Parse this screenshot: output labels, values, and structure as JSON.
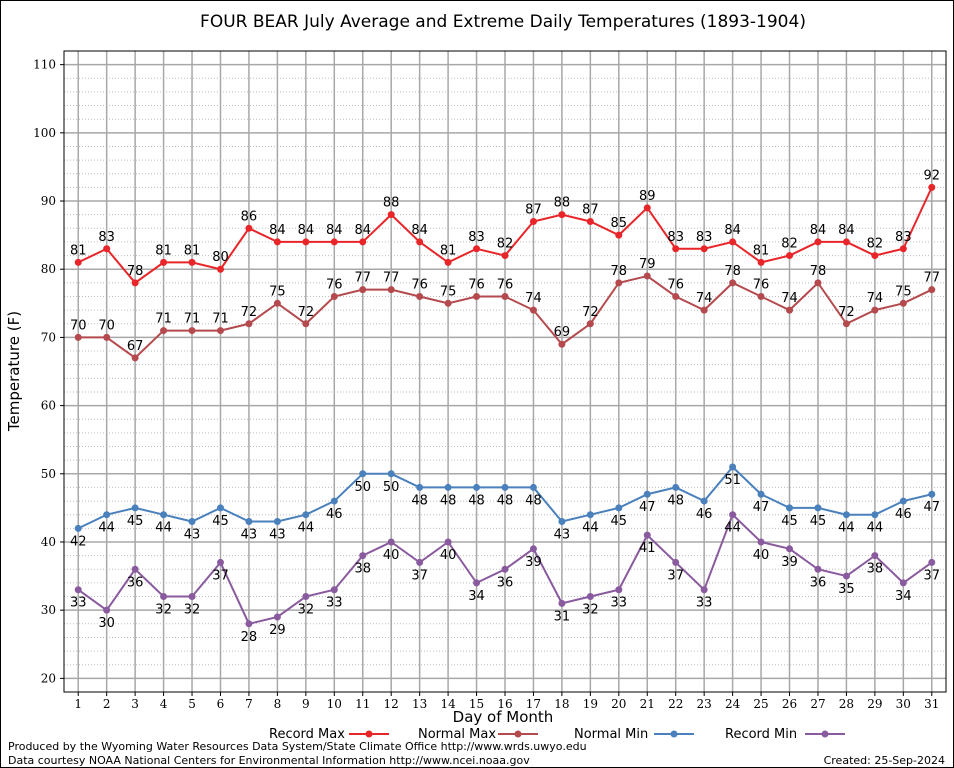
{
  "footer": {
    "produced_by": "Produced by the Wyoming Water Resources Data System/State Climate Office http://www.wrds.uwyo.edu",
    "courtesy": "Data courtesy NOAA National Centers for Environmental Information http://www.ncei.noaa.gov",
    "created": "Created:  25-Sep-2024"
  },
  "chart_data": {
    "type": "line",
    "title": "FOUR BEAR July Average and Extreme Daily Temperatures (1893-1904)",
    "xlabel": "Day of Month",
    "ylabel": "Temperature (F)",
    "xlim": [
      0.5,
      31.5
    ],
    "ylim": [
      18,
      112
    ],
    "yticks": [
      20,
      30,
      40,
      50,
      60,
      70,
      80,
      90,
      100,
      110
    ],
    "x": [
      1,
      2,
      3,
      4,
      5,
      6,
      7,
      8,
      9,
      10,
      11,
      12,
      13,
      14,
      15,
      16,
      17,
      18,
      19,
      20,
      21,
      22,
      23,
      24,
      25,
      26,
      27,
      28,
      29,
      30,
      31
    ],
    "grid": true,
    "legend_position": "bottom",
    "series": [
      {
        "name": "Record Max",
        "color": "#e8262a",
        "label_position": "above",
        "values": [
          81,
          83,
          78,
          81,
          81,
          80,
          86,
          84,
          84,
          84,
          84,
          88,
          84,
          81,
          83,
          82,
          87,
          88,
          87,
          85,
          89,
          83,
          83,
          84,
          81,
          82,
          84,
          84,
          82,
          83,
          92
        ]
      },
      {
        "name": "Normal Max",
        "color": "#b44a4e",
        "label_position": "above",
        "values": [
          70,
          70,
          67,
          71,
          71,
          71,
          72,
          75,
          72,
          76,
          77,
          77,
          76,
          75,
          76,
          76,
          74,
          69,
          72,
          78,
          79,
          76,
          74,
          78,
          76,
          74,
          78,
          72,
          74,
          75,
          77
        ]
      },
      {
        "name": "Normal Min",
        "color": "#4a80bc",
        "label_position": "below",
        "values": [
          42,
          44,
          45,
          44,
          43,
          45,
          43,
          43,
          44,
          46,
          50,
          50,
          48,
          48,
          48,
          48,
          48,
          43,
          44,
          45,
          47,
          48,
          46,
          51,
          47,
          45,
          45,
          44,
          44,
          46,
          47
        ]
      },
      {
        "name": "Record Min",
        "color": "#8a5a9e",
        "label_position": "below",
        "values": [
          33,
          30,
          36,
          32,
          32,
          37,
          28,
          29,
          32,
          33,
          38,
          40,
          37,
          40,
          34,
          36,
          39,
          31,
          32,
          33,
          41,
          37,
          33,
          44,
          40,
          39,
          36,
          35,
          38,
          34,
          37
        ]
      }
    ]
  }
}
